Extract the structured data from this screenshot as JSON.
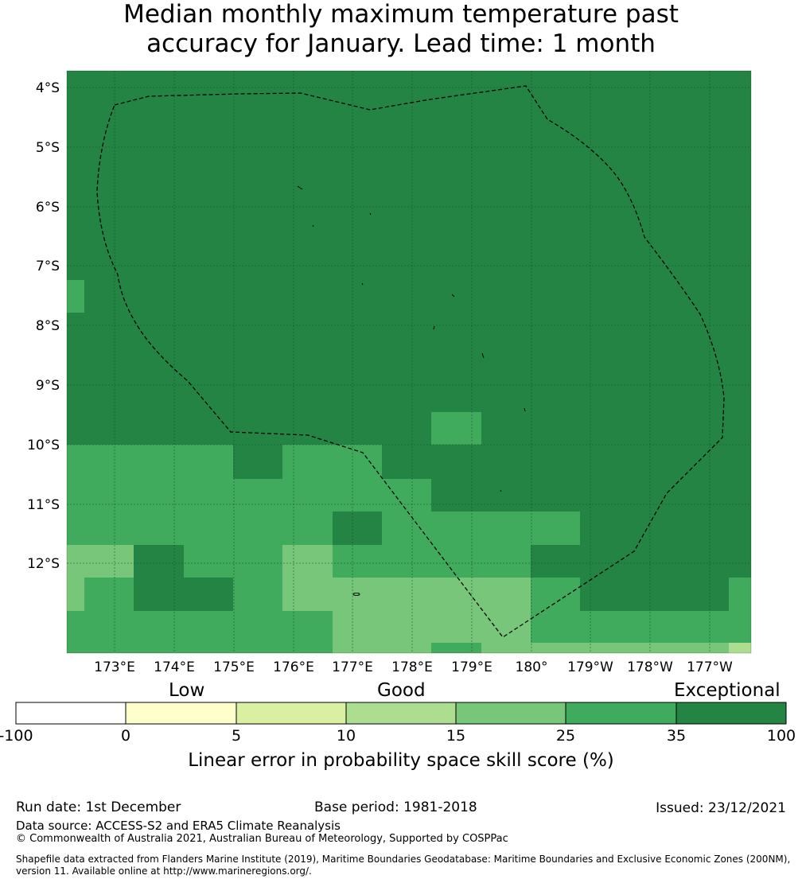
{
  "title_line1": "Median monthly maximum temperature past",
  "title_line2": "accuracy for January. Lead time: 1 month",
  "map": {
    "lat_labels": [
      "4°S",
      "5°S",
      "6°S",
      "7°S",
      "8°S",
      "9°S",
      "10°S",
      "11°S",
      "12°S"
    ],
    "lon_labels": [
      "173°E",
      "174°E",
      "175°E",
      "176°E",
      "177°E",
      "178°E",
      "179°E",
      "180°",
      "179°W",
      "178°W",
      "177°W"
    ],
    "boundary": "Exclusive Economic Zone (dashed line)"
  },
  "colorbar": {
    "categories": [
      "Low",
      "Good",
      "Exceptional"
    ],
    "ticks": [
      "-100",
      "0",
      "5",
      "10",
      "15",
      "25",
      "35",
      "100"
    ],
    "colors": [
      "#ffffff",
      "#ffffcc",
      "#d9f0a3",
      "#addd8e",
      "#78c679",
      "#41ab5d",
      "#238443"
    ],
    "label": "Linear error in probability space skill score (%)"
  },
  "footer": {
    "run_date": "Run date: 1st December",
    "base_period": "Base period: 1981-2018",
    "issued": "Issued: 23/12/2021",
    "data_source": "Data source: ACCESS-S2 and ERA5 Climate Reanalysis",
    "copyright": "© Commonwealth of Australia 2021, Australian Bureau of Meteorology, Supported by COSPPac",
    "shapefile_line1": "Shapefile data extracted from Flanders Marine Institute (2019), Maritime Boundaries Geodatabase: Maritime Boundaries and Exclusive Economic Zones (200NM),",
    "shapefile_line2": "version 11. Available online at http://www.marineregions.org/."
  }
}
